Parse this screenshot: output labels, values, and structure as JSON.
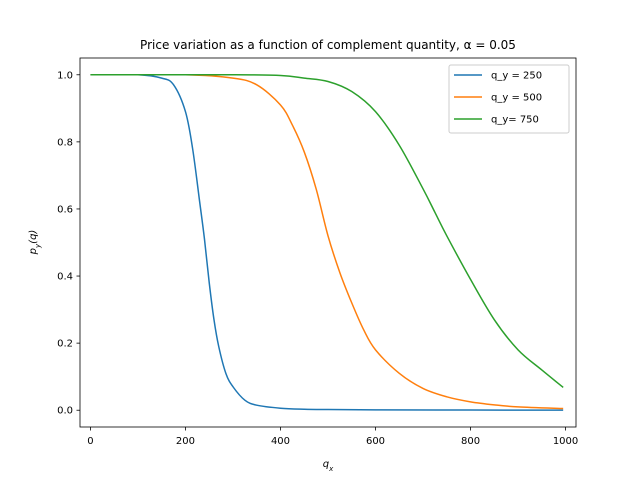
{
  "chart_data": {
    "type": "line",
    "title": "Price variation as a function of complement quantity, α = 0.05",
    "xlabel": "q_x",
    "ylabel": "p_y(q)",
    "xlim": [
      -22,
      1022
    ],
    "ylim": [
      -0.05,
      1.05
    ],
    "xticks": [
      0,
      200,
      400,
      600,
      800,
      1000
    ],
    "yticks": [
      0.0,
      0.2,
      0.4,
      0.6,
      0.8,
      1.0
    ],
    "xtick_labels": [
      "0",
      "200",
      "400",
      "600",
      "800",
      "1000"
    ],
    "ytick_labels": [
      "0.0",
      "0.2",
      "0.4",
      "0.6",
      "0.8",
      "1.0"
    ],
    "grid": false,
    "legend_position": "top-right",
    "series": [
      {
        "name": "q_y = 250",
        "color": "#1f77b4",
        "x": [
          0,
          100,
          150,
          175,
          200,
          215,
          230,
          240,
          250,
          260,
          270,
          285,
          300,
          325,
          350,
          400,
          450,
          500,
          600,
          800,
          995
        ],
        "y": [
          1.0,
          1.0,
          0.99,
          0.97,
          0.89,
          0.78,
          0.62,
          0.51,
          0.38,
          0.27,
          0.19,
          0.11,
          0.07,
          0.03,
          0.015,
          0.006,
          0.003,
          0.002,
          0.001,
          0.0005,
          0.0003
        ]
      },
      {
        "name": "q_y = 500",
        "color": "#ff7f0e",
        "x": [
          0,
          200,
          300,
          350,
          400,
          425,
          450,
          475,
          500,
          525,
          550,
          575,
          600,
          650,
          700,
          750,
          800,
          850,
          900,
          995
        ],
        "y": [
          1.0,
          1.0,
          0.99,
          0.97,
          0.91,
          0.85,
          0.77,
          0.66,
          0.52,
          0.41,
          0.32,
          0.24,
          0.18,
          0.11,
          0.065,
          0.04,
          0.025,
          0.016,
          0.01,
          0.005
        ]
      },
      {
        "name": "q_y= 750",
        "color": "#2ca02c",
        "x": [
          0,
          300,
          400,
          450,
          500,
          550,
          600,
          650,
          700,
          725,
          750,
          800,
          850,
          900,
          950,
          995
        ],
        "y": [
          1.0,
          1.0,
          0.998,
          0.99,
          0.98,
          0.95,
          0.89,
          0.79,
          0.66,
          0.59,
          0.52,
          0.39,
          0.27,
          0.18,
          0.12,
          0.068
        ]
      }
    ]
  }
}
